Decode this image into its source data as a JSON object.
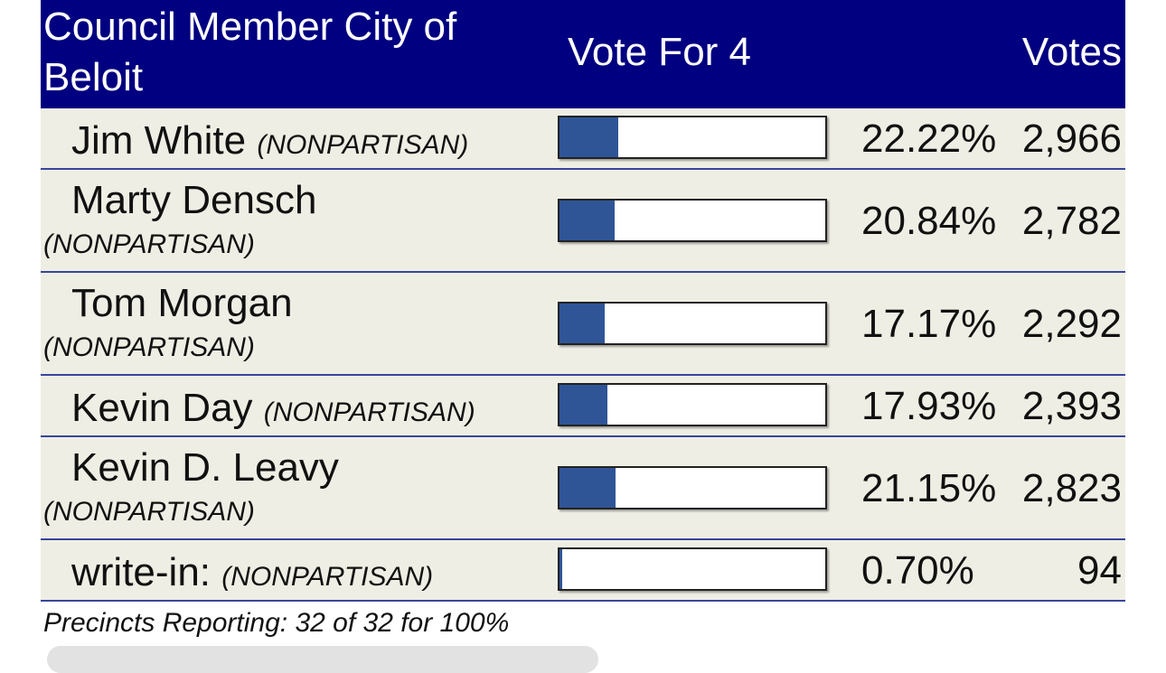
{
  "header": {
    "title": "Council Member City of Beloit",
    "vote_for": "Vote For 4",
    "votes": "Votes"
  },
  "bar_color": "#2f5597",
  "header_color": "#000080",
  "candidates": [
    {
      "name": "Jim White",
      "party": "(NONPARTISAN)",
      "percent": "22.22%",
      "votes": "2,966",
      "share": 0.2222
    },
    {
      "name": "Marty Densch",
      "party": "(NONPARTISAN)",
      "percent": "20.84%",
      "votes": "2,782",
      "share": 0.2084
    },
    {
      "name": "Tom Morgan",
      "party": "(NONPARTISAN)",
      "percent": "17.17%",
      "votes": "2,292",
      "share": 0.1717
    },
    {
      "name": "Kevin Day",
      "party": "(NONPARTISAN)",
      "percent": "17.93%",
      "votes": "2,393",
      "share": 0.1793
    },
    {
      "name": "Kevin D. Leavy",
      "party": "(NONPARTISAN)",
      "percent": "21.15%",
      "votes": "2,823",
      "share": 0.2115
    },
    {
      "name": "write-in:",
      "party": "(NONPARTISAN)",
      "percent": "0.70%",
      "votes": "94",
      "share": 0.007
    }
  ],
  "footer": {
    "precincts": "Precincts Reporting: 32 of 32 for 100%"
  }
}
